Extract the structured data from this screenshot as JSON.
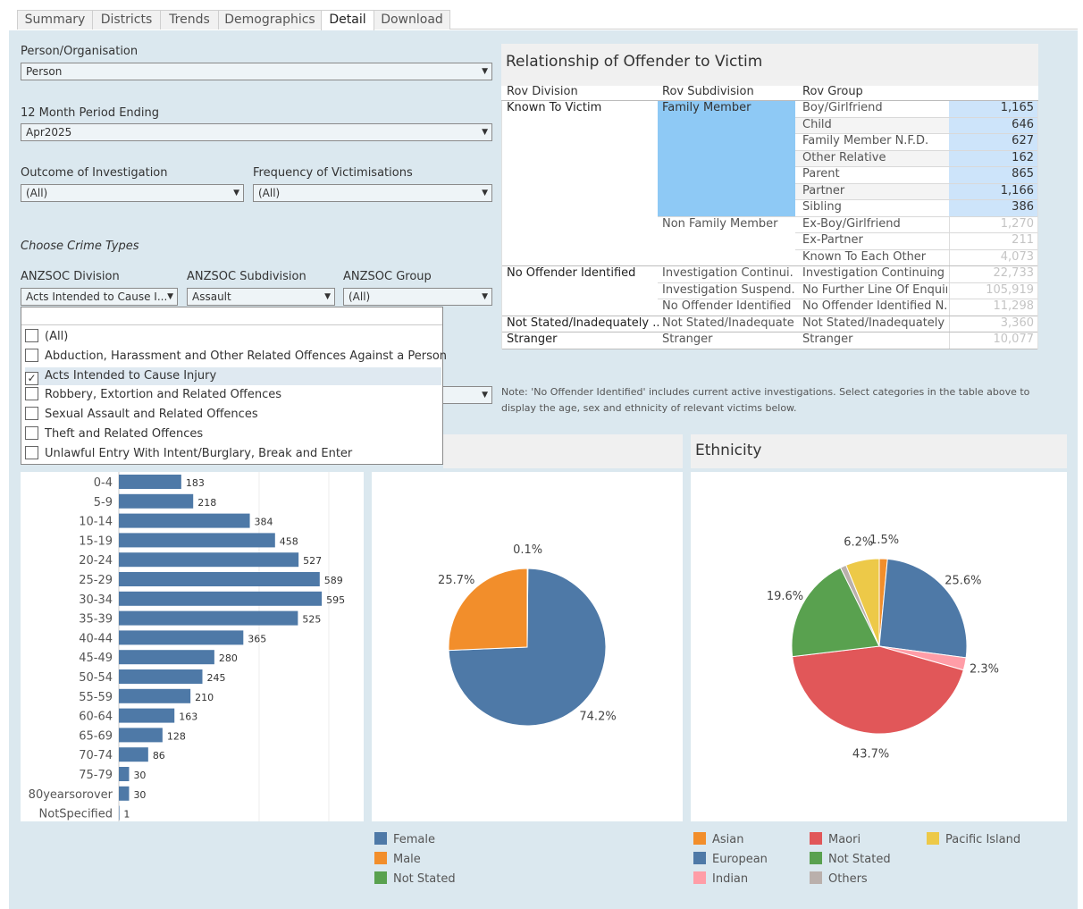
{
  "tabs": [
    "Summary",
    "Districts",
    "Trends",
    "Demographics",
    "Detail",
    "Download"
  ],
  "active_tab": "Detail",
  "filters": {
    "person_org": {
      "label": "Person/Organisation",
      "value": "Person"
    },
    "period": {
      "label": "12 Month Period Ending",
      "value": "Apr2025"
    },
    "outcome": {
      "label": "Outcome of Investigation",
      "value": "(All)"
    },
    "frequency": {
      "label": "Frequency of Victimisations",
      "value": "(All)"
    },
    "crime_types_heading": "Choose Crime Types",
    "division": {
      "label": "ANZSOC Division",
      "value": "Acts Intended to Cause I..."
    },
    "subdivision": {
      "label": "ANZSOC Subdivision",
      "value": "Assault"
    },
    "group": {
      "label": "ANZSOC Group",
      "value": "(All)"
    }
  },
  "division_dropdown": {
    "options": [
      {
        "label": "(All)",
        "checked": false
      },
      {
        "label": "Abduction, Harassment and Other Related Offences Against a Person",
        "checked": false
      },
      {
        "label": "Acts Intended to Cause Injury",
        "checked": true
      },
      {
        "label": "Robbery, Extortion and Related Offences",
        "checked": false
      },
      {
        "label": "Sexual Assault and Related Offences",
        "checked": false
      },
      {
        "label": "Theft and Related Offences",
        "checked": false
      },
      {
        "label": "Unlawful Entry With Intent/Burglary, Break and Enter",
        "checked": false
      }
    ],
    "check_mark": "✓"
  },
  "rov_table": {
    "title": "Relationship of Offender to Victim",
    "headers": [
      "Rov Division",
      "Rov Subdivision",
      "Rov Group"
    ],
    "rows": [
      {
        "division": "Known To Victim",
        "subdivision": "Family Member",
        "group": "Boy/Girlfriend",
        "value": "1,165"
      },
      {
        "division": "",
        "subdivision": "",
        "group": "Child",
        "value": "646"
      },
      {
        "division": "",
        "subdivision": "",
        "group": "Family Member N.F.D.",
        "value": "627"
      },
      {
        "division": "",
        "subdivision": "",
        "group": "Other Relative",
        "value": "162"
      },
      {
        "division": "",
        "subdivision": "",
        "group": "Parent",
        "value": "865"
      },
      {
        "division": "",
        "subdivision": "",
        "group": "Partner",
        "value": "1,166"
      },
      {
        "division": "",
        "subdivision": "",
        "group": "Sibling",
        "value": "386"
      },
      {
        "division": "",
        "subdivision": "Non Family Member",
        "group": "Ex-Boy/Girlfriend",
        "value": "1,270"
      },
      {
        "division": "",
        "subdivision": "",
        "group": "Ex-Partner",
        "value": "211"
      },
      {
        "division": "",
        "subdivision": "",
        "group": "Known To Each Other",
        "value": "4,073"
      },
      {
        "division": "No Offender Identified",
        "subdivision": "Investigation Continui..",
        "group": "Investigation Continuing",
        "value": "22,733"
      },
      {
        "division": "",
        "subdivision": "Investigation Suspend..",
        "group": "No Further Line Of Enquiry",
        "value": "105,919"
      },
      {
        "division": "",
        "subdivision": "No Offender Identified ..",
        "group": "No Offender Identified N...",
        "value": "11,298"
      },
      {
        "division": "Not Stated/Inadequately ..",
        "subdivision": "Not Stated/Inadequate..",
        "group": "Not Stated/Inadequately ..",
        "value": "3,360"
      },
      {
        "division": "Stranger",
        "subdivision": "Stranger",
        "group": "Stranger",
        "value": "10,077"
      }
    ]
  },
  "note": "Note: 'No Offender Identified' includes current active investigations. Select categories in the  table above to display the age, sex and ethnicity of relevant victims below.",
  "ethnicity_title": "Ethnicity",
  "age_chart": {
    "type": "bar",
    "categories": [
      "0-4",
      "5-9",
      "10-14",
      "15-19",
      "20-24",
      "25-29",
      "30-34",
      "35-39",
      "40-44",
      "45-49",
      "50-54",
      "55-59",
      "60-64",
      "65-69",
      "70-74",
      "75-79",
      "80yearsorover",
      "NotSpecified"
    ],
    "values": [
      183,
      218,
      384,
      458,
      527,
      589,
      595,
      525,
      365,
      280,
      245,
      210,
      163,
      128,
      86,
      30,
      30,
      1
    ],
    "bar_color": "#4e79a7",
    "xlim": [
      0,
      600
    ]
  },
  "sex_chart": {
    "type": "pie",
    "slices": [
      {
        "name": "Female",
        "value": 74.2,
        "label": "74.2%",
        "color": "#4e79a7"
      },
      {
        "name": "Male",
        "value": 25.7,
        "label": "25.7%",
        "color": "#f28e2b"
      },
      {
        "name": "Not Stated",
        "value": 0.1,
        "label": "0.1%",
        "color": "#59a14f"
      }
    ]
  },
  "ethnicity_chart": {
    "type": "pie",
    "slices": [
      {
        "name": "Asian",
        "value": 1.5,
        "label": "1.5%",
        "color": "#f28e2b"
      },
      {
        "name": "European",
        "value": 25.6,
        "label": "25.6%",
        "color": "#4e79a7"
      },
      {
        "name": "Indian",
        "value": 2.3,
        "label": "2.3%",
        "color": "#ff9da7"
      },
      {
        "name": "Maori",
        "value": 43.7,
        "label": "43.7%",
        "color": "#e15759"
      },
      {
        "name": "Not Stated",
        "value": 19.6,
        "label": "19.6%",
        "color": "#59a14f"
      },
      {
        "name": "Others",
        "value": 1.1,
        "label": "",
        "color": "#bab0ac"
      },
      {
        "name": "Pacific Island",
        "value": 6.2,
        "label": "6.2%",
        "color": "#edc948"
      }
    ]
  },
  "sex_legend": [
    {
      "name": "Female",
      "color": "#4e79a7"
    },
    {
      "name": "Male",
      "color": "#f28e2b"
    },
    {
      "name": "Not Stated",
      "color": "#59a14f"
    }
  ],
  "ethnicity_legend": [
    {
      "name": "Asian",
      "color": "#f28e2b"
    },
    {
      "name": "European",
      "color": "#4e79a7"
    },
    {
      "name": "Indian",
      "color": "#ff9da7"
    },
    {
      "name": "Maori",
      "color": "#e15759"
    },
    {
      "name": "Not Stated",
      "color": "#59a14f"
    },
    {
      "name": "Others",
      "color": "#bab0ac"
    },
    {
      "name": "Pacific Island",
      "color": "#edc948"
    }
  ]
}
